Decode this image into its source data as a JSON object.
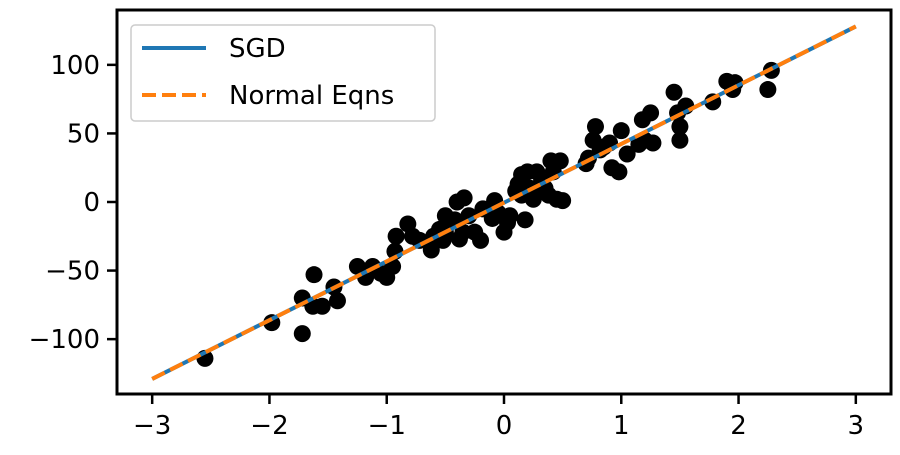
{
  "chart_data": {
    "type": "scatter",
    "title": "",
    "xlabel": "",
    "ylabel": "",
    "xlim": [
      -3.3,
      3.3
    ],
    "ylim": [
      -140,
      140
    ],
    "xticks": [
      -3,
      -2,
      -1,
      0,
      1,
      2,
      3
    ],
    "xtick_labels": [
      "−3",
      "−2",
      "−1",
      "0",
      "1",
      "2",
      "3"
    ],
    "yticks": [
      -100,
      -50,
      0,
      50,
      100
    ],
    "ytick_labels": [
      "−100",
      "−50",
      "0",
      "50",
      "100"
    ],
    "grid": false,
    "legend_position": "top-left",
    "points": {
      "color": "#000000",
      "data": [
        [
          -2.55,
          -114
        ],
        [
          -1.98,
          -88
        ],
        [
          -1.72,
          -70
        ],
        [
          -1.72,
          -96
        ],
        [
          -1.62,
          -53
        ],
        [
          -1.63,
          -76
        ],
        [
          -1.55,
          -76
        ],
        [
          -1.45,
          -62
        ],
        [
          -1.42,
          -72
        ],
        [
          -1.25,
          -47
        ],
        [
          -1.18,
          -55
        ],
        [
          -1.12,
          -47
        ],
        [
          -1.05,
          -52
        ],
        [
          -1.0,
          -55
        ],
        [
          -0.95,
          -47
        ],
        [
          -0.93,
          -36
        ],
        [
          -0.92,
          -25
        ],
        [
          -0.82,
          -16
        ],
        [
          -0.78,
          -25
        ],
        [
          -0.72,
          -28
        ],
        [
          -0.62,
          -35
        ],
        [
          -0.6,
          -25
        ],
        [
          -0.55,
          -20
        ],
        [
          -0.52,
          -28
        ],
        [
          -0.5,
          -22
        ],
        [
          -0.48,
          -15
        ],
        [
          -0.5,
          -10
        ],
        [
          -0.42,
          -13
        ],
        [
          -0.4,
          0
        ],
        [
          -0.38,
          -27
        ],
        [
          -0.35,
          -22
        ],
        [
          -0.34,
          3
        ],
        [
          -0.3,
          -10
        ],
        [
          -0.25,
          -22
        ],
        [
          -0.2,
          -28
        ],
        [
          -0.18,
          -5
        ],
        [
          -0.1,
          -12
        ],
        [
          -0.08,
          1
        ],
        [
          -0.05,
          -8
        ],
        [
          0.0,
          -22
        ],
        [
          0.03,
          -15
        ],
        [
          0.05,
          -10
        ],
        [
          0.1,
          8
        ],
        [
          0.12,
          13
        ],
        [
          0.15,
          20
        ],
        [
          0.15,
          5
        ],
        [
          0.18,
          -13
        ],
        [
          0.2,
          22
        ],
        [
          0.22,
          10
        ],
        [
          0.25,
          2
        ],
        [
          0.28,
          22
        ],
        [
          0.32,
          15
        ],
        [
          0.35,
          10
        ],
        [
          0.38,
          5
        ],
        [
          0.4,
          30
        ],
        [
          0.42,
          22
        ],
        [
          0.45,
          2
        ],
        [
          0.48,
          30
        ],
        [
          0.5,
          1
        ],
        [
          0.7,
          28
        ],
        [
          0.72,
          32
        ],
        [
          0.76,
          45
        ],
        [
          0.78,
          55
        ],
        [
          0.82,
          38
        ],
        [
          0.85,
          40
        ],
        [
          0.9,
          43
        ],
        [
          0.92,
          25
        ],
        [
          0.98,
          22
        ],
        [
          1.0,
          52
        ],
        [
          1.05,
          35
        ],
        [
          1.15,
          42
        ],
        [
          1.18,
          60
        ],
        [
          1.2,
          45
        ],
        [
          1.25,
          65
        ],
        [
          1.27,
          43
        ],
        [
          1.45,
          80
        ],
        [
          1.48,
          65
        ],
        [
          1.5,
          55
        ],
        [
          1.5,
          45
        ],
        [
          1.55,
          70
        ],
        [
          1.78,
          73
        ],
        [
          1.9,
          88
        ],
        [
          1.95,
          82
        ],
        [
          1.97,
          87
        ],
        [
          2.25,
          82
        ],
        [
          2.28,
          96
        ]
      ]
    },
    "series": [
      {
        "name": "SGD",
        "color": "#1f77b4",
        "style": "solid",
        "x": [
          -3,
          3
        ],
        "y": [
          -129,
          128
        ]
      },
      {
        "name": "Normal Eqns",
        "color": "#ff7f0e",
        "style": "dashed",
        "x": [
          -3,
          3
        ],
        "y": [
          -129,
          128
        ]
      }
    ]
  }
}
